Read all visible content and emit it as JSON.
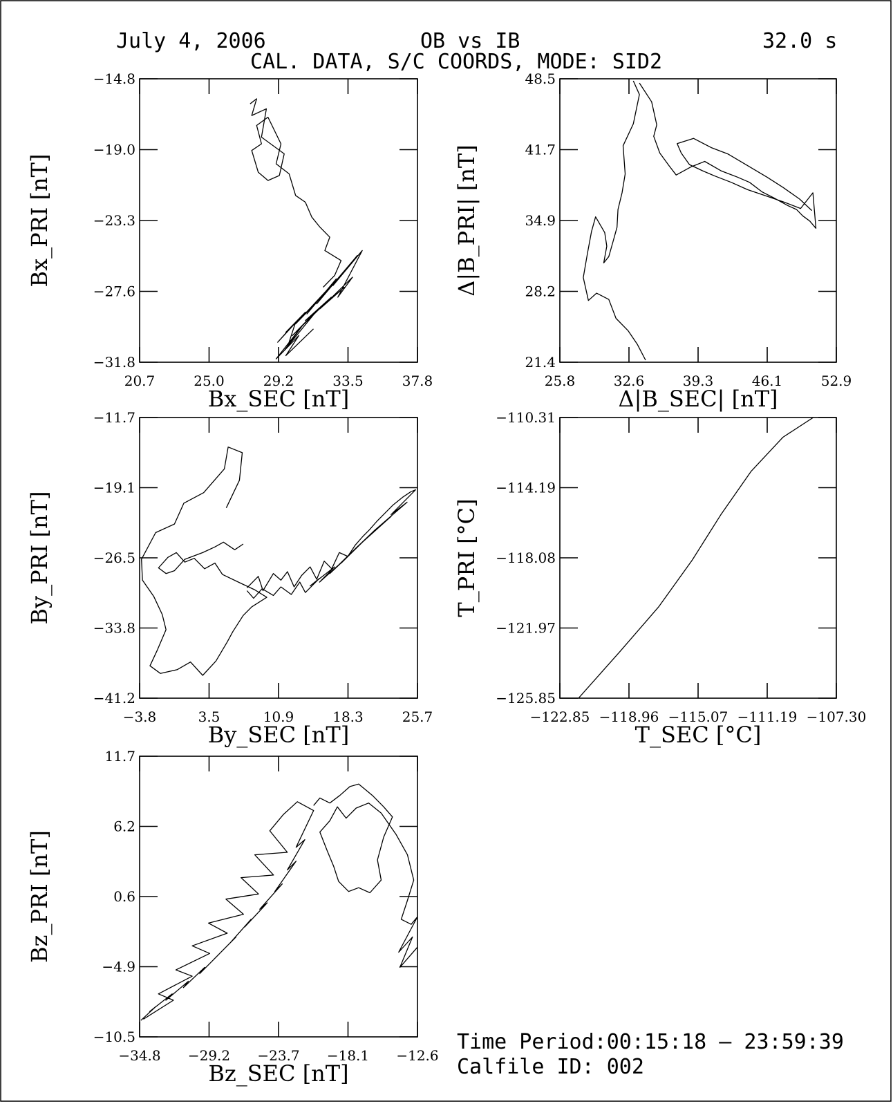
{
  "header": {
    "date": "July 4, 2006",
    "comparison": "OB vs IB",
    "interval": "32.0 s",
    "subtitle": "CAL. DATA, S/C COORDS, MODE: SID2"
  },
  "footer": {
    "time_period": "Time Period:00:15:18  – 23:59:39",
    "calfile": "Calfile ID: 002"
  },
  "chart_data": [
    {
      "type": "line",
      "xlabel": "Bx_SEC [nT]",
      "ylabel": "Bx_PRI [nT]",
      "xlim": [
        20.7,
        37.8
      ],
      "ylim": [
        -31.8,
        -14.8
      ],
      "xticks": [
        "20.7",
        "25.0",
        "29.2",
        "33.5",
        "37.8"
      ],
      "yticks": [
        "-31.8",
        "-27.6",
        "-23.3",
        "-19.0",
        "-14.8"
      ],
      "series": [
        {
          "x": [
            27.5,
            27.9,
            27.6,
            28.5,
            28.2,
            29.6,
            29.3,
            28.6,
            28.0,
            27.6,
            28.2,
            27.9,
            28.6,
            29.4,
            29.1,
            29.9,
            30.3,
            30.9,
            31.3,
            31.8,
            32.4,
            32.1,
            33.1,
            32.7,
            32.0
          ],
          "y": [
            -16.3,
            -16.0,
            -17.0,
            -16.6,
            -18.3,
            -19.3,
            -20.6,
            -20.9,
            -20.4,
            -19.1,
            -18.7,
            -17.6,
            -17.1,
            -18.7,
            -19.9,
            -20.5,
            -21.8,
            -22.2,
            -23.1,
            -23.7,
            -24.3,
            -25.1,
            -25.7,
            -26.6,
            -27.3
          ]
        },
        {
          "x": [
            29.8,
            30.3,
            29.2,
            30.9,
            29.7,
            31.6,
            30.3,
            32.2,
            31.0,
            32.8,
            31.6,
            33.5,
            32.1,
            34.1,
            32.6,
            34.4,
            32.9,
            33.8,
            31.8,
            33.3,
            30.9,
            32.5,
            30.1,
            31.7,
            29.6,
            30.8,
            29.1,
            30.5,
            29.7,
            31.4
          ],
          "y": [
            -30.9,
            -29.4,
            -30.6,
            -28.8,
            -30.0,
            -28.2,
            -29.5,
            -27.5,
            -28.9,
            -26.8,
            -28.3,
            -26.1,
            -27.7,
            -25.4,
            -27.2,
            -25.1,
            -27.9,
            -26.7,
            -28.6,
            -27.3,
            -29.3,
            -27.9,
            -30.2,
            -28.6,
            -31.1,
            -29.5,
            -31.6,
            -30.2,
            -31.4,
            -29.8
          ]
        }
      ]
    },
    {
      "type": "line",
      "xlabel": "Δ|B_SEC| [nT]",
      "ylabel": "Δ|B_PRI| [nT]",
      "xlim": [
        25.8,
        52.9
      ],
      "ylim": [
        21.4,
        48.5
      ],
      "xticks": [
        "25.8",
        "32.6",
        "39.3",
        "46.1",
        "52.9"
      ],
      "yticks": [
        "21.4",
        "28.2",
        "34.9",
        "41.7",
        "48.5"
      ],
      "series": [
        {
          "x": [
            34.2,
            33.4,
            32.5,
            31.3,
            30.6,
            29.4,
            28.6,
            28.1,
            28.5,
            28.9,
            29.3,
            30.2,
            30.4,
            30.1,
            30.6,
            31.0,
            31.4,
            31.5,
            31.9,
            32.2,
            32.0,
            33.0,
            33.6,
            33.0
          ],
          "y": [
            21.6,
            23.1,
            24.4,
            25.6,
            27.4,
            28.0,
            27.3,
            29.5,
            31.8,
            33.9,
            35.3,
            33.8,
            32.5,
            30.9,
            31.5,
            32.9,
            34.3,
            36.0,
            37.6,
            39.4,
            42.1,
            44.2,
            47.0,
            48.3
          ]
        },
        {
          "x": [
            33.6,
            34.8,
            35.3,
            35.0,
            35.6,
            36.5,
            37.2,
            38.7,
            40.0,
            41.6,
            43.2,
            44.4,
            45.6,
            46.8,
            48.1,
            49.0,
            49.6,
            50.3,
            50.9,
            50.6,
            49.4,
            47.8,
            46.0,
            44.2,
            42.6,
            41.0,
            39.8,
            38.5,
            37.7,
            37.3,
            38.9,
            40.7,
            42.3,
            44.2,
            46.1,
            47.7,
            49.3,
            50.5
          ],
          "y": [
            48.1,
            46.3,
            44.1,
            43.0,
            41.4,
            40.2,
            39.3,
            40.1,
            40.6,
            39.7,
            39.1,
            38.6,
            37.7,
            37.1,
            36.4,
            36.0,
            35.4,
            34.9,
            34.2,
            37.6,
            36.1,
            36.7,
            37.3,
            37.9,
            38.6,
            39.2,
            39.7,
            40.3,
            41.4,
            42.3,
            42.8,
            41.9,
            41.3,
            40.2,
            39.1,
            38.1,
            37.0,
            35.9
          ]
        }
      ]
    },
    {
      "type": "line",
      "xlabel": "By_SEC [nT]",
      "ylabel": "By_PRI [nT]",
      "xlim": [
        -3.8,
        25.7
      ],
      "ylim": [
        -41.2,
        -11.7
      ],
      "xticks": [
        "-3.8",
        "3.5",
        "10.9",
        "18.3",
        "25.7"
      ],
      "yticks": [
        "-41.2",
        "-33.8",
        "-26.5",
        "-19.1",
        "-11.7"
      ],
      "series": [
        {
          "x": [
            5.4,
            6.8,
            7.1,
            5.6,
            5.2,
            3.0,
            0.9,
            -0.1,
            -2.1,
            -3.6,
            -3.5,
            -2.3,
            -1.4,
            -1.0,
            -1.9,
            -2.7,
            -1.6,
            0.2,
            1.6,
            2.9,
            4.3,
            5.5,
            6.1,
            7.2,
            8.1,
            9.7,
            8.4,
            6.9,
            5.0,
            4.2,
            3.1,
            2.0,
            1.0,
            0.1,
            -0.8,
            -1.8,
            -1.0,
            -0.1,
            1.0,
            2.9,
            4.2,
            5.1,
            6.3,
            7.2
          ],
          "y": [
            -21.2,
            -18.3,
            -15.4,
            -14.8,
            -17.1,
            -19.6,
            -20.7,
            -22.9,
            -23.8,
            -26.6,
            -28.8,
            -30.5,
            -32.4,
            -34.0,
            -36.1,
            -37.8,
            -38.6,
            -38.2,
            -37.4,
            -38.8,
            -37.3,
            -35.3,
            -34.2,
            -32.5,
            -31.6,
            -30.6,
            -29.8,
            -29.1,
            -28.2,
            -27.0,
            -27.6,
            -26.5,
            -26.9,
            -25.9,
            -26.4,
            -27.5,
            -28.1,
            -27.8,
            -26.6,
            -25.9,
            -25.3,
            -24.8,
            -25.6,
            -25.0
          ]
        },
        {
          "x": [
            7.6,
            8.8,
            9.3,
            10.4,
            11.2,
            11.9,
            12.6,
            13.4,
            14.3,
            15.0,
            15.8,
            16.6,
            17.4,
            18.3,
            19.1,
            19.9,
            20.6,
            21.4,
            22.3,
            23.1,
            24.1,
            25.0,
            25.5,
            22.9,
            24.6,
            21.1,
            22.9,
            19.3,
            21.1,
            17.6,
            19.4,
            16.4,
            18.0,
            15.3,
            16.9,
            14.3,
            15.3,
            13.8,
            13.2,
            12.3,
            11.2,
            10.4,
            9.2,
            8.3,
            7.6
          ],
          "y": [
            -29.6,
            -28.4,
            -29.9,
            -28.1,
            -28.8,
            -27.9,
            -29.5,
            -28.3,
            -27.4,
            -28.7,
            -26.8,
            -27.6,
            -25.9,
            -26.3,
            -25.1,
            -24.2,
            -23.5,
            -22.6,
            -21.7,
            -20.9,
            -20.1,
            -19.5,
            -19.3,
            -21.9,
            -20.6,
            -23.6,
            -22.1,
            -25.3,
            -23.6,
            -27.0,
            -25.2,
            -28.1,
            -26.6,
            -29.0,
            -27.4,
            -29.4,
            -28.6,
            -30.1,
            -29.0,
            -30.3,
            -29.5,
            -30.4,
            -29.7,
            -30.7,
            -29.9
          ]
        }
      ]
    },
    {
      "type": "line",
      "xlabel": "T_SEC [°C]",
      "ylabel": "T_PRI [°C]",
      "xlim": [
        -122.85,
        -107.3
      ],
      "ylim": [
        -125.85,
        -110.31
      ],
      "xticks": [
        "-122.85",
        "-118.96",
        "-115.07",
        "-111.19",
        "-107.30"
      ],
      "yticks": [
        "-125.85",
        "-121.97",
        "-118.08",
        "-114.19",
        "-110.31"
      ],
      "series": [
        {
          "x": [
            -121.8,
            -119.5,
            -117.3,
            -115.4,
            -113.8,
            -112.1,
            -110.3,
            -108.6
          ],
          "y": [
            -125.85,
            -123.3,
            -120.8,
            -118.2,
            -115.7,
            -113.3,
            -111.4,
            -110.31
          ]
        }
      ]
    },
    {
      "type": "line",
      "xlabel": "Bz_SEC [nT]",
      "ylabel": "Bz_PRI [nT]",
      "xlim": [
        -34.8,
        -12.6
      ],
      "ylim": [
        -10.5,
        11.7
      ],
      "xticks": [
        "-34.8",
        "-29.2",
        "-23.7",
        "-18.1",
        "-12.6"
      ],
      "yticks": [
        "-10.5",
        "-4.9",
        "0.6",
        "6.2",
        "11.7"
      ],
      "series": [
        {
          "x": [
            -34.7,
            -33.5,
            -34.0,
            -32.2,
            -32.7,
            -30.9,
            -31.3,
            -29.6,
            -30.0,
            -28.4,
            -28.9,
            -27.1,
            -27.6,
            -25.9,
            -26.4,
            -24.6,
            -25.2,
            -23.4,
            -24.0,
            -22.3,
            -23.0,
            -21.6,
            -22.3,
            -20.9,
            -22.2,
            -23.3,
            -24.4,
            -23.0,
            -25.6,
            -24.1,
            -26.7,
            -25.3,
            -27.9,
            -26.5,
            -29.3,
            -27.8,
            -30.6,
            -29.2,
            -31.9,
            -30.6,
            -33.3,
            -32.1,
            -34.5
          ],
          "y": [
            -9.2,
            -8.1,
            -8.5,
            -7.1,
            -7.6,
            -6.1,
            -6.6,
            -5.0,
            -5.5,
            -3.9,
            -4.4,
            -2.6,
            -3.1,
            -1.2,
            -1.8,
            0.1,
            -0.4,
            1.6,
            1.0,
            3.4,
            2.7,
            5.1,
            4.5,
            7.4,
            8.1,
            7.1,
            5.8,
            4.1,
            3.9,
            2.3,
            2.1,
            0.8,
            0.4,
            -0.8,
            -1.5,
            -2.3,
            -3.3,
            -3.9,
            -5.2,
            -5.7,
            -7.1,
            -7.6,
            -9.1
          ]
        },
        {
          "x": [
            -20.9,
            -20.4,
            -19.6,
            -18.8,
            -18.0,
            -17.3,
            -16.2,
            -15.3,
            -14.6,
            -15.3,
            -15.8,
            -15.5,
            -16.4,
            -17.3,
            -18.1,
            -18.9,
            -19.3,
            -19.8,
            -20.4,
            -19.6,
            -19.0,
            -18.3,
            -17.5,
            -16.5,
            -15.5,
            -14.3,
            -13.4,
            -12.9,
            -13.4,
            -13.9,
            -13.1,
            -12.6,
            -14.1,
            -13.0,
            -14.0,
            -12.6
          ],
          "y": [
            7.8,
            8.4,
            8.0,
            8.6,
            9.3,
            9.5,
            8.6,
            7.7,
            6.9,
            5.3,
            3.5,
            1.9,
            0.9,
            1.3,
            1.0,
            1.8,
            3.0,
            4.2,
            5.7,
            6.6,
            7.7,
            6.8,
            7.6,
            8.0,
            7.2,
            5.5,
            3.9,
            1.9,
            0.3,
            -1.2,
            -1.6,
            -1.0,
            -3.8,
            -2.6,
            -5.0,
            -3.4
          ]
        }
      ]
    }
  ]
}
